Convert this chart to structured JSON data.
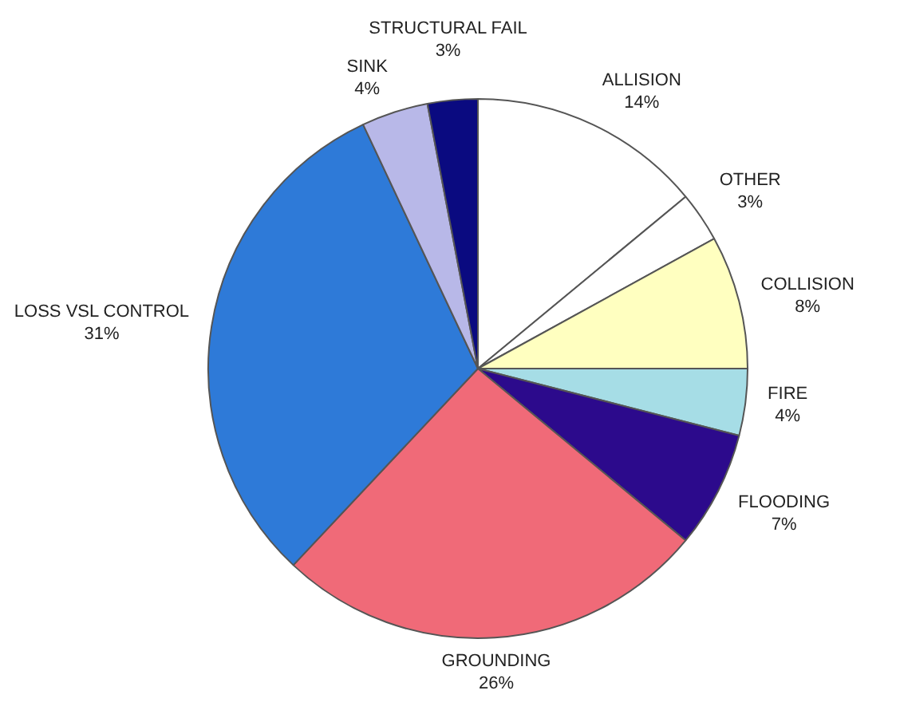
{
  "chart_data": {
    "type": "pie",
    "categories": [
      "ALLISION",
      "OTHER",
      "COLLISION",
      "FIRE",
      "FLOODING",
      "GROUNDING",
      "LOSS VSL CONTROL",
      "SINK",
      "STRUCTURAL FAIL"
    ],
    "values": [
      14,
      3,
      8,
      4,
      7,
      26,
      31,
      4,
      3
    ],
    "value_labels": [
      "14%",
      "3%",
      "8%",
      "4%",
      "7%",
      "26%",
      "31%",
      "4%",
      "3%"
    ],
    "colors": [
      "#ffffff",
      "#ffffff",
      "#ffffc0",
      "#a6dde6",
      "#2c0a8c",
      "#f06a78",
      "#2e7ad8",
      "#b8b8e8",
      "#0a0a80"
    ],
    "legend": false
  }
}
